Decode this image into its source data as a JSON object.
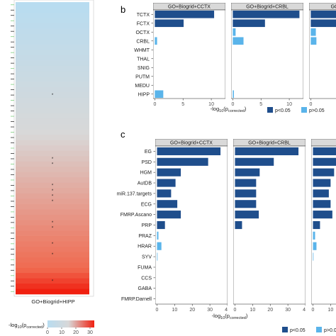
{
  "figure": {
    "panel_b_letter": "b",
    "panel_c_letter": "c",
    "colors": {
      "significant": "#1f4e8c",
      "not_significant": "#5ab4ea",
      "heat_low": "#b8dcf0",
      "heat_mid": "#d8d8d8",
      "heat_high": "#f02010",
      "strip_fill": "#d9d9d9"
    }
  },
  "chart_data": [
    {
      "id": "a",
      "type": "heatmap",
      "column_label": "GO+Biogrid+HIPP",
      "legend_title_prefix": "-log",
      "legend_title_sub": "10",
      "legend_title_paren_open": "(p",
      "legend_title_p_sub": "corrected",
      "legend_title_paren_close": ")",
      "legend_ticks": [
        "0",
        "10",
        "20",
        "30"
      ],
      "legend_range": [
        0,
        33
      ],
      "n_rows": 55,
      "star_rows": [
        17,
        29,
        30,
        34,
        35,
        36,
        37,
        41,
        42,
        45,
        47,
        52
      ],
      "star_symbol": "*"
    },
    {
      "id": "b",
      "type": "bar",
      "orientation": "horizontal",
      "categories": [
        "TCTX",
        "FCTX",
        "OCTX",
        "CRBL",
        "WHMT",
        "THAL",
        "SNIG",
        "PUTM",
        "MEDU",
        "HIPP"
      ],
      "xlabel_prefix": "-log",
      "xlabel_sub": "10",
      "xlabel_paren_open": "(p",
      "xlabel_p_sub": "corrected",
      "xlabel_paren_close": ")",
      "x_ticks": [
        "0",
        "5",
        "10"
      ],
      "xlim": [
        -0.3,
        12.5
      ],
      "facets": [
        {
          "name": "GO+Biogrid+CCTX",
          "values": [
            10.5,
            5.1,
            0,
            0.4,
            0,
            0,
            0,
            0,
            0,
            1.5
          ],
          "significant": [
            true,
            true,
            false,
            false,
            false,
            false,
            false,
            false,
            false,
            false
          ]
        },
        {
          "name": "GO+Biogrid+CRBL",
          "values": [
            11.8,
            5.7,
            0.5,
            1.9,
            0,
            0,
            0,
            0,
            0,
            0.2
          ],
          "significant": [
            true,
            true,
            false,
            false,
            false,
            false,
            false,
            false,
            false,
            false
          ]
        },
        {
          "name": "GO+Biogrid+",
          "values": [
            10.0,
            4.5,
            0.9,
            1.0,
            0,
            0,
            0,
            0,
            0,
            0
          ],
          "significant": [
            true,
            true,
            false,
            false,
            false,
            false,
            false,
            false,
            false,
            false
          ]
        }
      ],
      "legend": [
        {
          "label": "p<0.05",
          "key": "significant"
        },
        {
          "label": "p>0.05",
          "key": "not_significant"
        }
      ]
    },
    {
      "id": "c",
      "type": "bar",
      "orientation": "horizontal",
      "categories": [
        "EG",
        "PSD",
        "HGM",
        "AutDB",
        "miR.137.targets",
        "ECG",
        "FMRP.Ascano",
        "PRP",
        "PRAZ",
        "HRAR",
        "SYV",
        "FUMA",
        "CCS",
        "GABA",
        "FMRP.Darnell"
      ],
      "xlabel_prefix": "-log",
      "xlabel_sub": "10",
      "xlabel_paren_open": "(p",
      "xlabel_p_sub": "corrected",
      "xlabel_paren_close": ")",
      "x_ticks": [
        "0",
        "10",
        "20",
        "30",
        "40"
      ],
      "xlim": [
        -1,
        40
      ],
      "facets": [
        {
          "name": "GO+Biogrid+CCTX",
          "values": [
            36,
            29,
            13.5,
            10.5,
            8,
            11.5,
            13.5,
            4.5,
            0.8,
            2.5,
            0.3,
            0,
            0,
            0,
            0
          ],
          "significant": [
            true,
            true,
            true,
            true,
            true,
            true,
            true,
            true,
            false,
            false,
            false,
            false,
            false,
            false,
            false
          ]
        },
        {
          "name": "GO+Biogrid+CRBL",
          "values": [
            36,
            22,
            14,
            12,
            12,
            12,
            13.5,
            4,
            0,
            0,
            0,
            0,
            0,
            0,
            0
          ],
          "significant": [
            true,
            true,
            true,
            true,
            true,
            true,
            true,
            true,
            false,
            false,
            false,
            false,
            false,
            false,
            false
          ]
        },
        {
          "name": "GO+",
          "values": [
            35,
            20,
            12,
            10,
            9,
            10,
            11,
            4,
            1.2,
            2,
            0.3,
            0,
            0,
            0,
            0
          ],
          "significant": [
            true,
            true,
            true,
            true,
            true,
            true,
            true,
            true,
            false,
            false,
            false,
            false,
            false,
            false,
            false
          ]
        }
      ],
      "legend": [
        {
          "label": "p<0.05",
          "key": "significant"
        },
        {
          "label": "p>0.05",
          "key": "not_significant"
        }
      ]
    }
  ]
}
